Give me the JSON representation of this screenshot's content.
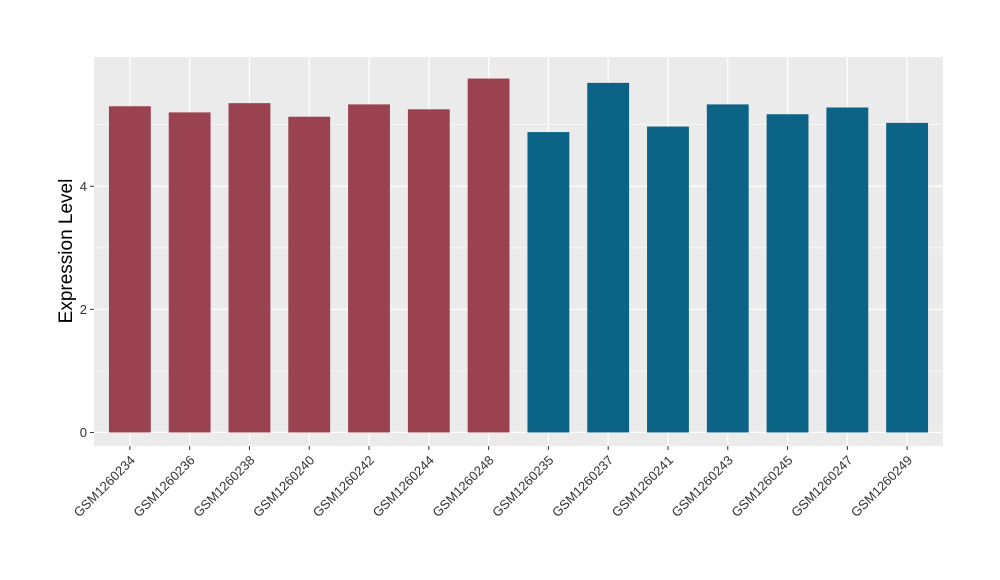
{
  "chart_data": {
    "type": "bar",
    "title": "",
    "xlabel": "",
    "ylabel": "Expression Level",
    "ylim": [
      -0.22,
      6.1
    ],
    "yticks": [
      0,
      2,
      4
    ],
    "grid": true,
    "legend": "none",
    "categories": [
      "GSM1260234",
      "GSM1260236",
      "GSM1260238",
      "GSM1260240",
      "GSM1260242",
      "GSM1260244",
      "GSM1260248",
      "GSM1260235",
      "GSM1260237",
      "GSM1260241",
      "GSM1260243",
      "GSM1260245",
      "GSM1260247",
      "GSM1260249"
    ],
    "values": [
      5.3,
      5.2,
      5.35,
      5.13,
      5.33,
      5.25,
      5.75,
      4.88,
      5.68,
      4.97,
      5.33,
      5.17,
      5.28,
      5.03
    ],
    "groups": [
      0,
      0,
      0,
      0,
      0,
      0,
      0,
      1,
      1,
      1,
      1,
      1,
      1,
      1
    ],
    "group_colors": [
      "#9a4250",
      "#0b6486"
    ],
    "panel_background": "#ebebeb",
    "grid_color": "#ffffff"
  }
}
